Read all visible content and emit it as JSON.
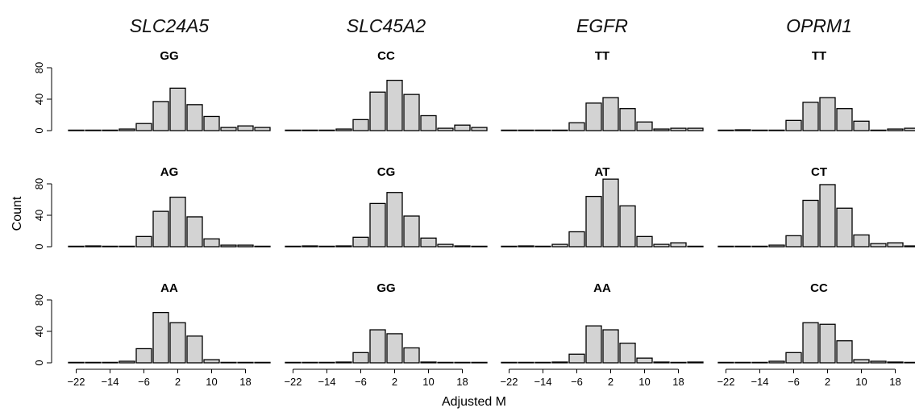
{
  "chart_data": {
    "type": "bar",
    "title": "",
    "xlabel": "Adjusted M",
    "ylabel": "Count",
    "ylim": [
      0,
      80
    ],
    "y_ticks": [
      "0",
      "40",
      "80"
    ],
    "x_bin_centers": [
      -22,
      -18,
      -14,
      -10,
      -6,
      -2,
      2,
      6,
      10,
      14,
      18,
      22
    ],
    "x_tick_labels": [
      "−22",
      "−14",
      "−6",
      "2",
      "10",
      "18"
    ],
    "columns": [
      "SLC24A5",
      "SLC45A2",
      "EGFR",
      "OPRM1"
    ],
    "panels": [
      [
        {
          "genotype": "GG",
          "values": [
            0,
            0,
            0,
            2,
            9,
            37,
            54,
            33,
            18,
            4,
            6,
            4
          ]
        },
        {
          "genotype": "CC",
          "values": [
            0,
            0,
            0,
            2,
            14,
            49,
            64,
            46,
            19,
            3,
            7,
            4
          ]
        },
        {
          "genotype": "TT",
          "values": [
            0,
            0,
            0,
            0,
            10,
            35,
            42,
            28,
            11,
            2,
            3,
            3
          ]
        },
        {
          "genotype": "TT",
          "values": [
            0,
            1,
            0,
            0,
            13,
            36,
            42,
            28,
            12,
            0,
            2,
            3
          ]
        }
      ],
      [
        {
          "genotype": "AG",
          "values": [
            0,
            1,
            0,
            0,
            13,
            45,
            63,
            38,
            10,
            2,
            2,
            0
          ]
        },
        {
          "genotype": "CG",
          "values": [
            0,
            1,
            0,
            1,
            12,
            55,
            69,
            39,
            11,
            3,
            1,
            0
          ]
        },
        {
          "genotype": "AT",
          "values": [
            0,
            1,
            0,
            3,
            19,
            64,
            86,
            52,
            13,
            3,
            5,
            0
          ]
        },
        {
          "genotype": "CT",
          "values": [
            0,
            0,
            0,
            2,
            14,
            59,
            79,
            49,
            15,
            4,
            5,
            1
          ]
        }
      ],
      [
        {
          "genotype": "AA",
          "values": [
            0,
            0,
            0,
            2,
            18,
            64,
            51,
            34,
            4,
            0,
            0,
            0
          ]
        },
        {
          "genotype": "GG",
          "values": [
            0,
            0,
            0,
            1,
            13,
            42,
            37,
            19,
            1,
            0,
            0,
            0
          ]
        },
        {
          "genotype": "AA",
          "values": [
            0,
            0,
            0,
            1,
            11,
            47,
            42,
            25,
            6,
            1,
            0,
            1
          ]
        },
        {
          "genotype": "CC",
          "values": [
            0,
            0,
            0,
            2,
            13,
            51,
            49,
            28,
            4,
            2,
            1,
            0
          ]
        }
      ]
    ]
  }
}
